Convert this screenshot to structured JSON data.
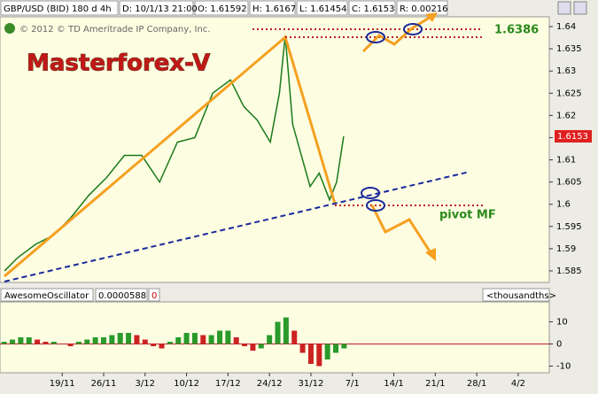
{
  "header": {
    "symbol": "GBP/USD (BID) 180 d 4h",
    "date": "D: 10/1/13 21:00",
    "open": "O: 1.61592",
    "high": "H: 1.6167",
    "low": "L: 1.61454",
    "close": "C: 1.6153",
    "range": "R: 0.00216"
  },
  "annotations": {
    "copyright": "© 2012 © TD Ameritrade IP Company, Inc.",
    "brand": "Masterforex-V",
    "level": "1.6386",
    "pivot": "pivot MF"
  },
  "chart_data": [
    {
      "type": "line",
      "series": [
        {
          "color": "#1a7a1a",
          "x": [
            -1.39,
            -1.07,
            -0.64,
            -0.21,
            0.21,
            0.64,
            1.07,
            1.5,
            1.92,
            2.35,
            2.78,
            3.2,
            3.63,
            4.06,
            4.38,
            4.7,
            5.02,
            5.24,
            5.38,
            5.56,
            5.77,
            5.98,
            6.2,
            6.45,
            6.62,
            6.79
          ],
          "values": [
            1.585,
            1.588,
            1.591,
            1.593,
            1.597,
            1.602,
            1.606,
            1.611,
            1.611,
            1.605,
            1.614,
            1.615,
            1.625,
            1.628,
            1.622,
            1.619,
            1.614,
            1.625,
            1.638,
            1.618,
            1.611,
            1.604,
            1.607,
            1.601,
            1.605,
            1.6153
          ]
        }
      ],
      "xlim": [
        -1.5,
        11.75
      ],
      "ylim": [
        1.5824,
        1.6422
      ],
      "yticks": [
        1.585,
        1.59,
        1.595,
        1.6,
        1.605,
        1.61,
        1.615,
        1.62,
        1.625,
        1.63,
        1.635,
        1.64
      ]
    },
    {
      "type": "bar",
      "title": "AwesomeOscillator",
      "value_text": "0.0000588",
      "zero_text": "0",
      "units": "<thousandths>",
      "up_color": "#2a9a2a",
      "down_color": "#cc2222",
      "x": [
        -1.4,
        -1.2,
        -1.0,
        -0.8,
        -0.6,
        -0.4,
        -0.2,
        0,
        0.2,
        0.4,
        0.6,
        0.8,
        1.0,
        1.2,
        1.4,
        1.6,
        1.8,
        2.0,
        2.2,
        2.4,
        2.6,
        2.8,
        3.0,
        3.2,
        3.4,
        3.6,
        3.8,
        4.0,
        4.2,
        4.4,
        4.6,
        4.8,
        5.0,
        5.2,
        5.4,
        5.6,
        5.8,
        6.0,
        6.2,
        6.4,
        6.6,
        6.8
      ],
      "values": [
        1,
        2,
        3,
        3,
        2,
        1,
        1,
        0,
        -1,
        1,
        2,
        3,
        3,
        4,
        5,
        5,
        4,
        2,
        -1,
        -2,
        1,
        3,
        5,
        5,
        4,
        4,
        6,
        6,
        3,
        -1,
        -3,
        -2,
        4,
        10,
        12,
        6,
        -4,
        -9,
        -10,
        -7,
        -4,
        -2
      ],
      "xlim": [
        -1.5,
        11.75
      ],
      "ylim": [
        -13,
        19
      ],
      "yticks": [
        -10,
        0,
        10
      ],
      "xticks": [
        {
          "value": 0,
          "label": "19/11"
        },
        {
          "value": 1,
          "label": "26/11"
        },
        {
          "value": 2,
          "label": "3/12"
        },
        {
          "value": 3,
          "label": "10/12"
        },
        {
          "value": 4,
          "label": "17/12"
        },
        {
          "value": 5,
          "label": "24/12"
        },
        {
          "value": 6,
          "label": "31/12"
        },
        {
          "value": 7,
          "label": "7/1"
        },
        {
          "value": 8,
          "label": "14/1"
        },
        {
          "value": 9,
          "label": "21/1"
        },
        {
          "value": 10,
          "label": "28/1"
        },
        {
          "value": 11,
          "label": "4/2"
        }
      ]
    }
  ]
}
